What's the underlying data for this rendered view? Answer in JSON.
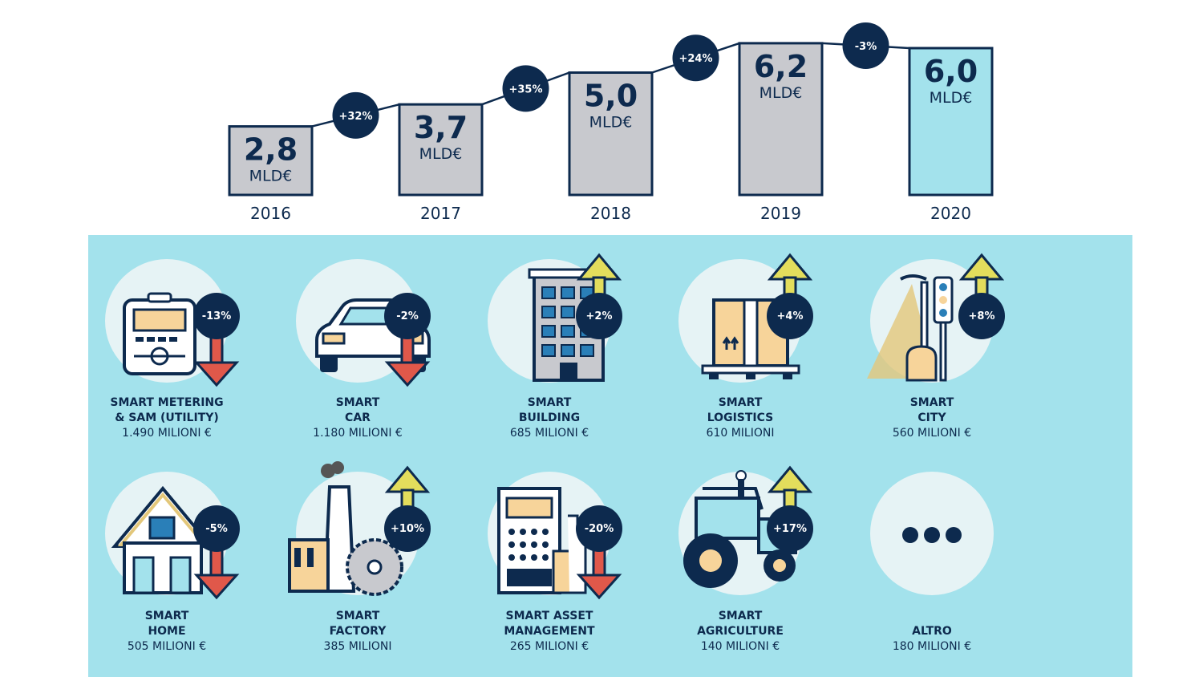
{
  "chart_data": {
    "type": "bar",
    "unit": "MLD€",
    "categories": [
      "2016",
      "2017",
      "2018",
      "2019",
      "2020"
    ],
    "values": [
      2.8,
      3.7,
      5.0,
      6.2,
      6.0
    ],
    "value_labels": [
      "2,8",
      "3,7",
      "5,0",
      "6,2",
      "6,0"
    ],
    "growth": [
      "+32%",
      "+35%",
      "+24%",
      "-3%"
    ],
    "highlight_index": 4,
    "colors": {
      "bar": "#c8c9ce",
      "highlight": "#a3e2ec",
      "stroke": "#0d2a4e",
      "badge": "#0d2a4e"
    }
  },
  "sectors": [
    {
      "id": "smart-metering",
      "icon": "meter-icon",
      "label_lines": [
        "SMART METERING",
        "& SAM (UTILITY)"
      ],
      "amount": "1.490 MILIONI €",
      "change": "-13%",
      "direction": "down"
    },
    {
      "id": "smart-car",
      "icon": "car-icon",
      "label_lines": [
        "SMART",
        "CAR"
      ],
      "amount": "1.180 MILIONI €",
      "change": "-2%",
      "direction": "down"
    },
    {
      "id": "smart-building",
      "icon": "building-icon",
      "label_lines": [
        "SMART",
        "BUILDING"
      ],
      "amount": "685 MILIONI €",
      "change": "+2%",
      "direction": "up"
    },
    {
      "id": "smart-logistics",
      "icon": "pallet-box-icon",
      "label_lines": [
        "SMART",
        "LOGISTICS"
      ],
      "amount": "610 MILIONI",
      "change": "+4%",
      "direction": "up"
    },
    {
      "id": "smart-city",
      "icon": "streetlight-icon",
      "label_lines": [
        "SMART",
        "CITY"
      ],
      "amount": "560 MILIONI €",
      "change": "+8%",
      "direction": "up"
    },
    {
      "id": "smart-home",
      "icon": "house-icon",
      "label_lines": [
        "SMART",
        "HOME"
      ],
      "amount": "505 MILIONI €",
      "change": "-5%",
      "direction": "down"
    },
    {
      "id": "smart-factory",
      "icon": "factory-icon",
      "label_lines": [
        "SMART",
        "FACTORY"
      ],
      "amount": "385 MILIONI",
      "change": "+10%",
      "direction": "up"
    },
    {
      "id": "smart-asset-management",
      "icon": "calculator-icon",
      "label_lines": [
        "SMART ASSET",
        "MANAGEMENT"
      ],
      "amount": "265 MILIONI €",
      "change": "-20%",
      "direction": "down"
    },
    {
      "id": "smart-agriculture",
      "icon": "tractor-icon",
      "label_lines": [
        "SMART",
        "AGRICULTURE"
      ],
      "amount": "140 MILIONI €",
      "change": "+17%",
      "direction": "up"
    },
    {
      "id": "altro",
      "icon": "ellipsis-icon",
      "label_lines": [
        "",
        "ALTRO"
      ],
      "amount": "180 MILIONI €",
      "change": "",
      "direction": "none"
    }
  ]
}
